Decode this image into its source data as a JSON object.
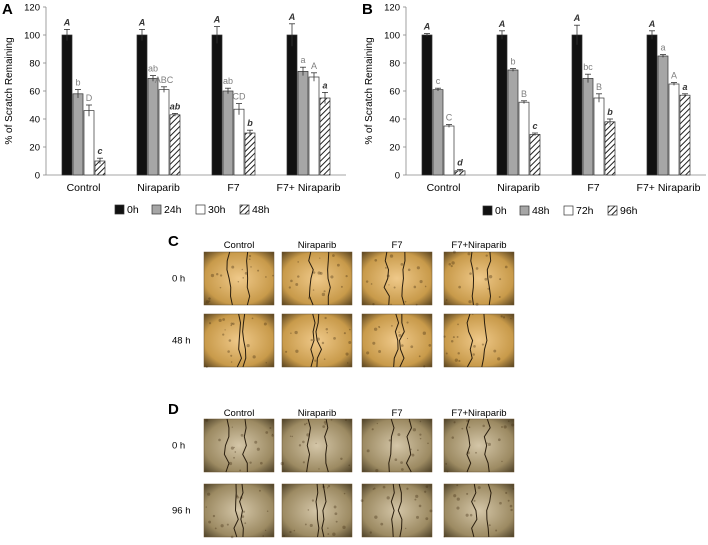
{
  "panels": {
    "a": "A",
    "b": "B",
    "c": "C",
    "d": "D"
  },
  "chart_data": [
    {
      "type": "bar",
      "panel": "A",
      "ylabel": "% of Scratch Remaining",
      "ylim": [
        0,
        120
      ],
      "yticks": [
        0,
        20,
        40,
        60,
        80,
        100,
        120
      ],
      "categories": [
        "Control",
        "Niraparib",
        "F7",
        "F7+ Niraparib"
      ],
      "grid": false,
      "legend_position": "bottom",
      "series": [
        {
          "name": "0h",
          "values": [
            100,
            100,
            100,
            100
          ],
          "errors": [
            4,
            4,
            6,
            8
          ],
          "letters": [
            "A",
            "A",
            "A",
            "A"
          ],
          "style": "black"
        },
        {
          "name": "24h",
          "values": [
            58,
            69,
            60,
            74
          ],
          "errors": [
            3,
            2,
            2,
            3
          ],
          "letters": [
            "b",
            "ab",
            "ab",
            "a"
          ],
          "style": "gray"
        },
        {
          "name": "30h",
          "values": [
            46,
            61,
            47,
            70
          ],
          "errors": [
            4,
            2,
            4,
            3
          ],
          "letters": [
            "D",
            "ABC",
            "CD",
            "A"
          ],
          "style": "white"
        },
        {
          "name": "48h",
          "values": [
            10,
            43,
            30,
            55
          ],
          "errors": [
            2,
            1,
            2,
            4
          ],
          "letters": [
            "c",
            "ab",
            "b",
            "a"
          ],
          "style": "hatch"
        }
      ]
    },
    {
      "type": "bar",
      "panel": "B",
      "ylabel": "% of Scratch Remaining",
      "ylim": [
        0,
        120
      ],
      "yticks": [
        0,
        20,
        40,
        60,
        80,
        100,
        120
      ],
      "categories": [
        "Control",
        "Niraparib",
        "F7",
        "F7+ Niraparib"
      ],
      "grid": false,
      "legend_position": "bottom",
      "series": [
        {
          "name": "0h",
          "values": [
            100,
            100,
            100,
            100
          ],
          "errors": [
            1,
            3,
            7,
            3
          ],
          "letters": [
            "A",
            "A",
            "A",
            "A"
          ],
          "style": "black"
        },
        {
          "name": "48h",
          "values": [
            61,
            75,
            69,
            85
          ],
          "errors": [
            1,
            1,
            3,
            1
          ],
          "letters": [
            "c",
            "b",
            "bc",
            "a"
          ],
          "style": "gray"
        },
        {
          "name": "72h",
          "values": [
            35,
            52,
            55,
            65
          ],
          "errors": [
            1,
            1,
            3,
            1
          ],
          "letters": [
            "C",
            "B",
            "B",
            "A"
          ],
          "style": "white"
        },
        {
          "name": "96h",
          "values": [
            3,
            29,
            38,
            57
          ],
          "errors": [
            1,
            1,
            2,
            1
          ],
          "letters": [
            "d",
            "c",
            "b",
            "a"
          ],
          "style": "hatch"
        }
      ]
    }
  ],
  "micro_c": {
    "columns": [
      "Control",
      "Niraparib",
      "F7",
      "F7+Niraparib"
    ],
    "rows": [
      "0 h",
      "48 h"
    ]
  },
  "micro_d": {
    "columns": [
      "Control",
      "Niraparib",
      "F7",
      "F7+Niraparib"
    ],
    "rows": [
      "0 h",
      "96 h"
    ]
  },
  "colors": {
    "bar_black": "#111111",
    "bar_gray": "#a6a6a6",
    "bar_white": "#ffffff",
    "letter_gray": "#7f7f7f",
    "micro_c_base": "#c89a4a",
    "micro_d_base": "#8f7a52"
  }
}
